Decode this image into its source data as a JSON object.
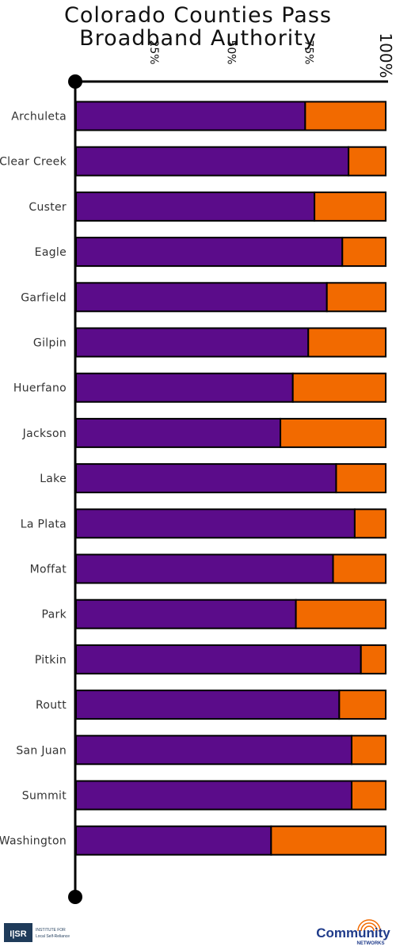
{
  "chart_data": {
    "type": "bar",
    "stacked": true,
    "orientation": "horizontal",
    "title_lines": [
      "Colorado Counties Pass",
      "Broadband Authority"
    ],
    "x_ticks": [
      "25%",
      "50%",
      "75%",
      "100%"
    ],
    "xlim": [
      0,
      100
    ],
    "categories": [
      "Archuleta",
      "Clear Creek",
      "Custer",
      "Eagle",
      "Garfield",
      "Gilpin",
      "Huerfano",
      "Jackson",
      "Lake",
      "La Plata",
      "Moffat",
      "Park",
      "Pitkin",
      "Routt",
      "San Juan",
      "Summit",
      "Washington"
    ],
    "series": [
      {
        "color": "#5b0c8a",
        "values": [
          74,
          88,
          77,
          86,
          81,
          75,
          70,
          66,
          84,
          90,
          83,
          71,
          92,
          85,
          89,
          89,
          63
        ]
      },
      {
        "color": "#f26a00",
        "values": [
          26,
          12,
          23,
          14,
          19,
          25,
          30,
          34,
          16,
          10,
          17,
          29,
          8,
          15,
          11,
          11,
          37
        ]
      }
    ],
    "grid": false,
    "legend": "none"
  },
  "logos": {
    "left": {
      "mark": "ILSR",
      "text_lines": [
        "INSTITUTE FOR",
        "Local Self-Reliance"
      ]
    },
    "right": {
      "mark": "Community",
      "sub": "NETWORKS"
    }
  }
}
